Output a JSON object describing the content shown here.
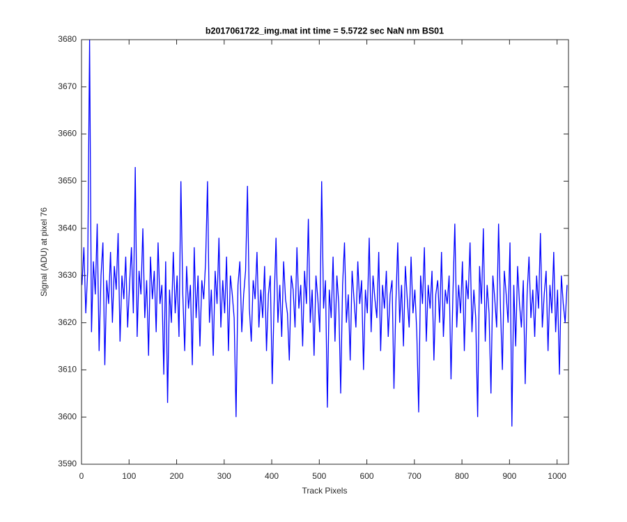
{
  "chart_data": {
    "type": "line",
    "title": "b2017061722_img.mat int time = 5.5722 sec  NaN nm BS01",
    "x_label": "Track Pixels",
    "y_label": "Signal (ADU) at pixel 76",
    "xlim": [
      0,
      1024
    ],
    "xticks": [
      0,
      100,
      200,
      300,
      400,
      500,
      600,
      700,
      800,
      900,
      1000
    ],
    "ylim": [
      3590,
      3680
    ],
    "yticks": [
      3590,
      3600,
      3610,
      3620,
      3630,
      3640,
      3650,
      3660,
      3670,
      3680
    ],
    "grid": false,
    "series": [
      {
        "color": "#0000ff",
        "x": [
          1,
          5,
          9,
          13,
          17,
          21,
          25,
          29,
          33,
          37,
          41,
          45,
          49,
          53,
          57,
          61,
          65,
          69,
          73,
          77,
          81,
          85,
          89,
          93,
          97,
          101,
          105,
          109,
          113,
          117,
          121,
          125,
          129,
          133,
          137,
          141,
          145,
          149,
          153,
          157,
          161,
          165,
          169,
          173,
          177,
          181,
          185,
          189,
          193,
          197,
          201,
          205,
          209,
          213,
          217,
          221,
          225,
          229,
          233,
          237,
          241,
          245,
          249,
          253,
          257,
          261,
          265,
          269,
          273,
          277,
          281,
          285,
          289,
          293,
          297,
          301,
          305,
          309,
          313,
          317,
          321,
          325,
          329,
          333,
          337,
          341,
          345,
          349,
          353,
          357,
          361,
          365,
          369,
          373,
          377,
          381,
          385,
          389,
          393,
          397,
          401,
          405,
          409,
          413,
          417,
          421,
          425,
          429,
          433,
          437,
          441,
          445,
          449,
          453,
          457,
          461,
          465,
          469,
          473,
          477,
          481,
          485,
          489,
          493,
          497,
          501,
          505,
          509,
          513,
          517,
          521,
          525,
          529,
          533,
          537,
          541,
          545,
          549,
          553,
          557,
          561,
          565,
          569,
          573,
          577,
          581,
          585,
          589,
          593,
          597,
          601,
          605,
          609,
          613,
          617,
          621,
          625,
          629,
          633,
          637,
          641,
          645,
          649,
          653,
          657,
          661,
          665,
          669,
          673,
          677,
          681,
          685,
          689,
          693,
          697,
          701,
          705,
          709,
          713,
          717,
          721,
          725,
          729,
          733,
          737,
          741,
          745,
          749,
          753,
          757,
          761,
          765,
          769,
          773,
          777,
          781,
          785,
          789,
          793,
          797,
          801,
          805,
          809,
          813,
          817,
          821,
          825,
          829,
          833,
          837,
          841,
          845,
          849,
          853,
          857,
          861,
          865,
          869,
          873,
          877,
          881,
          885,
          889,
          893,
          897,
          901,
          905,
          909,
          913,
          917,
          921,
          925,
          929,
          933,
          937,
          941,
          945,
          949,
          953,
          957,
          961,
          965,
          969,
          973,
          977,
          981,
          985,
          989,
          993,
          997,
          1001,
          1005,
          1009,
          1013,
          1017,
          1021
        ],
        "values": [
          3628,
          3636,
          3622,
          3631,
          3680,
          3618,
          3633,
          3626,
          3641,
          3614,
          3630,
          3637,
          3611,
          3629,
          3624,
          3635,
          3620,
          3632,
          3627,
          3639,
          3616,
          3630,
          3625,
          3634,
          3619,
          3628,
          3636,
          3622,
          3653,
          3617,
          3631,
          3626,
          3640,
          3621,
          3629,
          3613,
          3634,
          3625,
          3631,
          3618,
          3637,
          3624,
          3628,
          3609,
          3633,
          3603,
          3627,
          3620,
          3635,
          3622,
          3630,
          3617,
          3650,
          3626,
          3614,
          3632,
          3623,
          3628,
          3611,
          3636,
          3621,
          3630,
          3615,
          3629,
          3625,
          3633,
          3650,
          3620,
          3627,
          3613,
          3631,
          3624,
          3638,
          3619,
          3629,
          3622,
          3634,
          3614,
          3630,
          3626,
          3621,
          3600,
          3628,
          3633,
          3618,
          3626,
          3631,
          3649,
          3623,
          3616,
          3629,
          3625,
          3635,
          3619,
          3627,
          3621,
          3632,
          3614,
          3626,
          3630,
          3607,
          3624,
          3638,
          3620,
          3628,
          3617,
          3633,
          3625,
          3622,
          3612,
          3630,
          3627,
          3619,
          3636,
          3623,
          3628,
          3615,
          3631,
          3624,
          3642,
          3620,
          3627,
          3613,
          3630,
          3625,
          3618,
          3650,
          3623,
          3629,
          3602,
          3627,
          3621,
          3634,
          3616,
          3630,
          3624,
          3605,
          3628,
          3637,
          3620,
          3626,
          3612,
          3631,
          3625,
          3619,
          3633,
          3624,
          3629,
          3610,
          3627,
          3622,
          3638,
          3618,
          3630,
          3625,
          3621,
          3635,
          3614,
          3628,
          3623,
          3631,
          3617,
          3626,
          3629,
          3606,
          3624,
          3637,
          3620,
          3628,
          3615,
          3632,
          3625,
          3619,
          3634,
          3622,
          3627,
          3618,
          3601,
          3630,
          3624,
          3636,
          3616,
          3628,
          3623,
          3631,
          3612,
          3626,
          3629,
          3620,
          3635,
          3617,
          3627,
          3624,
          3630,
          3608,
          3626,
          3641,
          3619,
          3628,
          3622,
          3633,
          3614,
          3629,
          3625,
          3637,
          3618,
          3627,
          3621,
          3600,
          3632,
          3624,
          3640,
          3616,
          3628,
          3622,
          3605,
          3630,
          3625,
          3619,
          3641,
          3623,
          3610,
          3631,
          3626,
          3620,
          3637,
          3598,
          3628,
          3615,
          3632,
          3624,
          3619,
          3629,
          3607,
          3626,
          3634,
          3621,
          3627,
          3617,
          3630,
          3623,
          3639,
          3619,
          3626,
          3631,
          3614,
          3628,
          3622,
          3635,
          3618,
          3627,
          3609,
          3630,
          3624,
          3620,
          3628
        ]
      }
    ]
  }
}
